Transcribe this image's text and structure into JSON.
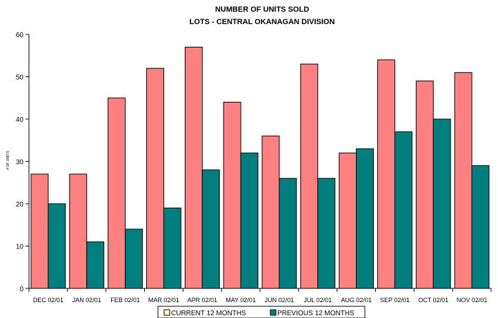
{
  "chart_data": {
    "type": "bar",
    "title": "NUMBER OF UNITS SOLD",
    "subtitle": "LOTS - CENTRAL OKANAGAN DIVISION",
    "ylabel": "# OF UNITS",
    "xlabel": "",
    "ylim": [
      0,
      60
    ],
    "yticks": [
      0,
      10,
      20,
      30,
      40,
      50,
      60
    ],
    "grid": false,
    "legend_position": "bottom",
    "categories": [
      "DEC 02/01",
      "JAN 02/01",
      "FEB 02/01",
      "MAR 02/01",
      "APR 02/01",
      "MAY 02/01",
      "JUN 02/01",
      "JUL 02/01",
      "AUG 02/01",
      "SEP 02/01",
      "OCT 02/01",
      "NOV 02/01"
    ],
    "series": [
      {
        "name": "CURRENT 12 MONTHS",
        "color": "#ff8080",
        "values": [
          27,
          27,
          45,
          52,
          57,
          44,
          36,
          53,
          32,
          54,
          49,
          51
        ]
      },
      {
        "name": "PREVIOUS 12 MONTHS",
        "color": "#007f7f",
        "values": [
          20,
          11,
          14,
          19,
          28,
          32,
          26,
          26,
          33,
          37,
          40,
          29
        ]
      }
    ],
    "legend_swatch_colors": [
      "#ffffcc",
      "#007f7f"
    ]
  }
}
